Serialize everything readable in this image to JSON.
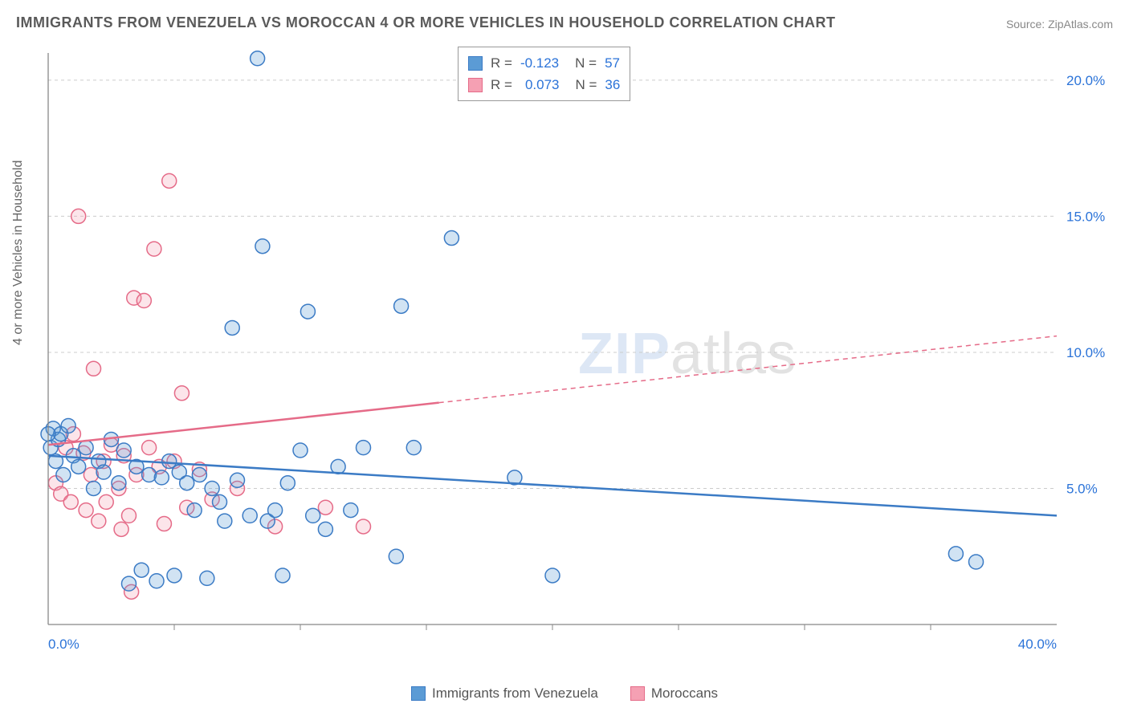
{
  "title": "IMMIGRANTS FROM VENEZUELA VS MOROCCAN 4 OR MORE VEHICLES IN HOUSEHOLD CORRELATION CHART",
  "source": "Source: ZipAtlas.com",
  "ylabel": "4 or more Vehicles in Household",
  "watermark_zip": "ZIP",
  "watermark_atlas": "atlas",
  "chart": {
    "type": "scatter",
    "background_color": "#ffffff",
    "grid_color": "#cccccc",
    "grid_dash": "4,4",
    "border_color": "#888888",
    "xlim": [
      0,
      40
    ],
    "ylim": [
      0,
      21
    ],
    "xtick_labels": [
      {
        "v": 0,
        "label": "0.0%"
      },
      {
        "v": 40,
        "label": "40.0%"
      }
    ],
    "xtick_minor": [
      5,
      10,
      15,
      20,
      25,
      30,
      35
    ],
    "ytick_labels": [
      {
        "v": 5,
        "label": "5.0%"
      },
      {
        "v": 10,
        "label": "10.0%"
      },
      {
        "v": 15,
        "label": "15.0%"
      },
      {
        "v": 20,
        "label": "20.0%"
      }
    ],
    "marker_radius": 9,
    "marker_stroke_width": 1.5,
    "marker_fill_opacity": 0.28,
    "line_width": 2.5,
    "series": [
      {
        "name": "Immigrants from Venezuela",
        "color": "#5b9bd5",
        "stroke": "#3b7bc5",
        "R": "-0.123",
        "N": "57",
        "trend": {
          "x1": 0,
          "y1": 6.2,
          "x2": 40,
          "y2": 4.0,
          "solid_until_x": 40
        },
        "points": [
          [
            0.1,
            6.5
          ],
          [
            0.2,
            7.2
          ],
          [
            0.3,
            6.0
          ],
          [
            0.4,
            6.8
          ],
          [
            0.5,
            7.0
          ],
          [
            0.6,
            5.5
          ],
          [
            0.8,
            7.3
          ],
          [
            1.0,
            6.2
          ],
          [
            1.2,
            5.8
          ],
          [
            1.5,
            6.5
          ],
          [
            1.8,
            5.0
          ],
          [
            2.0,
            6.0
          ],
          [
            2.2,
            5.6
          ],
          [
            2.5,
            6.8
          ],
          [
            2.8,
            5.2
          ],
          [
            3.0,
            6.4
          ],
          [
            3.2,
            1.5
          ],
          [
            3.5,
            5.8
          ],
          [
            3.7,
            2.0
          ],
          [
            4.0,
            5.5
          ],
          [
            4.3,
            1.6
          ],
          [
            4.5,
            5.4
          ],
          [
            4.8,
            6.0
          ],
          [
            5.0,
            1.8
          ],
          [
            5.2,
            5.6
          ],
          [
            5.5,
            5.2
          ],
          [
            5.8,
            4.2
          ],
          [
            6.0,
            5.5
          ],
          [
            6.3,
            1.7
          ],
          [
            6.5,
            5.0
          ],
          [
            6.8,
            4.5
          ],
          [
            7.0,
            3.8
          ],
          [
            7.3,
            10.9
          ],
          [
            7.5,
            5.3
          ],
          [
            8.0,
            4.0
          ],
          [
            8.3,
            20.8
          ],
          [
            8.5,
            13.9
          ],
          [
            8.7,
            3.8
          ],
          [
            9.0,
            4.2
          ],
          [
            9.3,
            1.8
          ],
          [
            9.5,
            5.2
          ],
          [
            10.0,
            6.4
          ],
          [
            10.3,
            11.5
          ],
          [
            10.5,
            4.0
          ],
          [
            11.0,
            3.5
          ],
          [
            11.5,
            5.8
          ],
          [
            12.0,
            4.2
          ],
          [
            12.5,
            6.5
          ],
          [
            13.8,
            2.5
          ],
          [
            14.0,
            11.7
          ],
          [
            14.5,
            6.5
          ],
          [
            16.0,
            14.2
          ],
          [
            18.5,
            5.4
          ],
          [
            20.0,
            1.8
          ],
          [
            36.0,
            2.6
          ],
          [
            36.8,
            2.3
          ],
          [
            0.0,
            7.0
          ]
        ]
      },
      {
        "name": "Moroccans",
        "color": "#f5a0b3",
        "stroke": "#e56b88",
        "R": "0.073",
        "N": "36",
        "trend": {
          "x1": 0,
          "y1": 6.6,
          "x2": 40,
          "y2": 10.6,
          "solid_until_x": 15.5
        },
        "points": [
          [
            0.3,
            5.2
          ],
          [
            0.5,
            4.8
          ],
          [
            0.7,
            6.5
          ],
          [
            0.9,
            4.5
          ],
          [
            1.0,
            7.0
          ],
          [
            1.2,
            15.0
          ],
          [
            1.4,
            6.3
          ],
          [
            1.5,
            4.2
          ],
          [
            1.7,
            5.5
          ],
          [
            1.8,
            9.4
          ],
          [
            2.0,
            3.8
          ],
          [
            2.2,
            6.0
          ],
          [
            2.3,
            4.5
          ],
          [
            2.5,
            6.6
          ],
          [
            2.8,
            5.0
          ],
          [
            2.9,
            3.5
          ],
          [
            3.0,
            6.2
          ],
          [
            3.2,
            4.0
          ],
          [
            3.3,
            1.2
          ],
          [
            3.4,
            12.0
          ],
          [
            3.5,
            5.5
          ],
          [
            3.8,
            11.9
          ],
          [
            4.0,
            6.5
          ],
          [
            4.2,
            13.8
          ],
          [
            4.4,
            5.8
          ],
          [
            4.6,
            3.7
          ],
          [
            4.8,
            16.3
          ],
          [
            5.0,
            6.0
          ],
          [
            5.3,
            8.5
          ],
          [
            5.5,
            4.3
          ],
          [
            6.0,
            5.7
          ],
          [
            6.5,
            4.6
          ],
          [
            7.5,
            5.0
          ],
          [
            9.0,
            3.6
          ],
          [
            11.0,
            4.3
          ],
          [
            12.5,
            3.6
          ]
        ]
      }
    ],
    "bottom_legend": [
      {
        "label": "Immigrants from Venezuela",
        "color": "#5b9bd5",
        "stroke": "#3b7bc5"
      },
      {
        "label": "Moroccans",
        "color": "#f5a0b3",
        "stroke": "#e56b88"
      }
    ]
  }
}
